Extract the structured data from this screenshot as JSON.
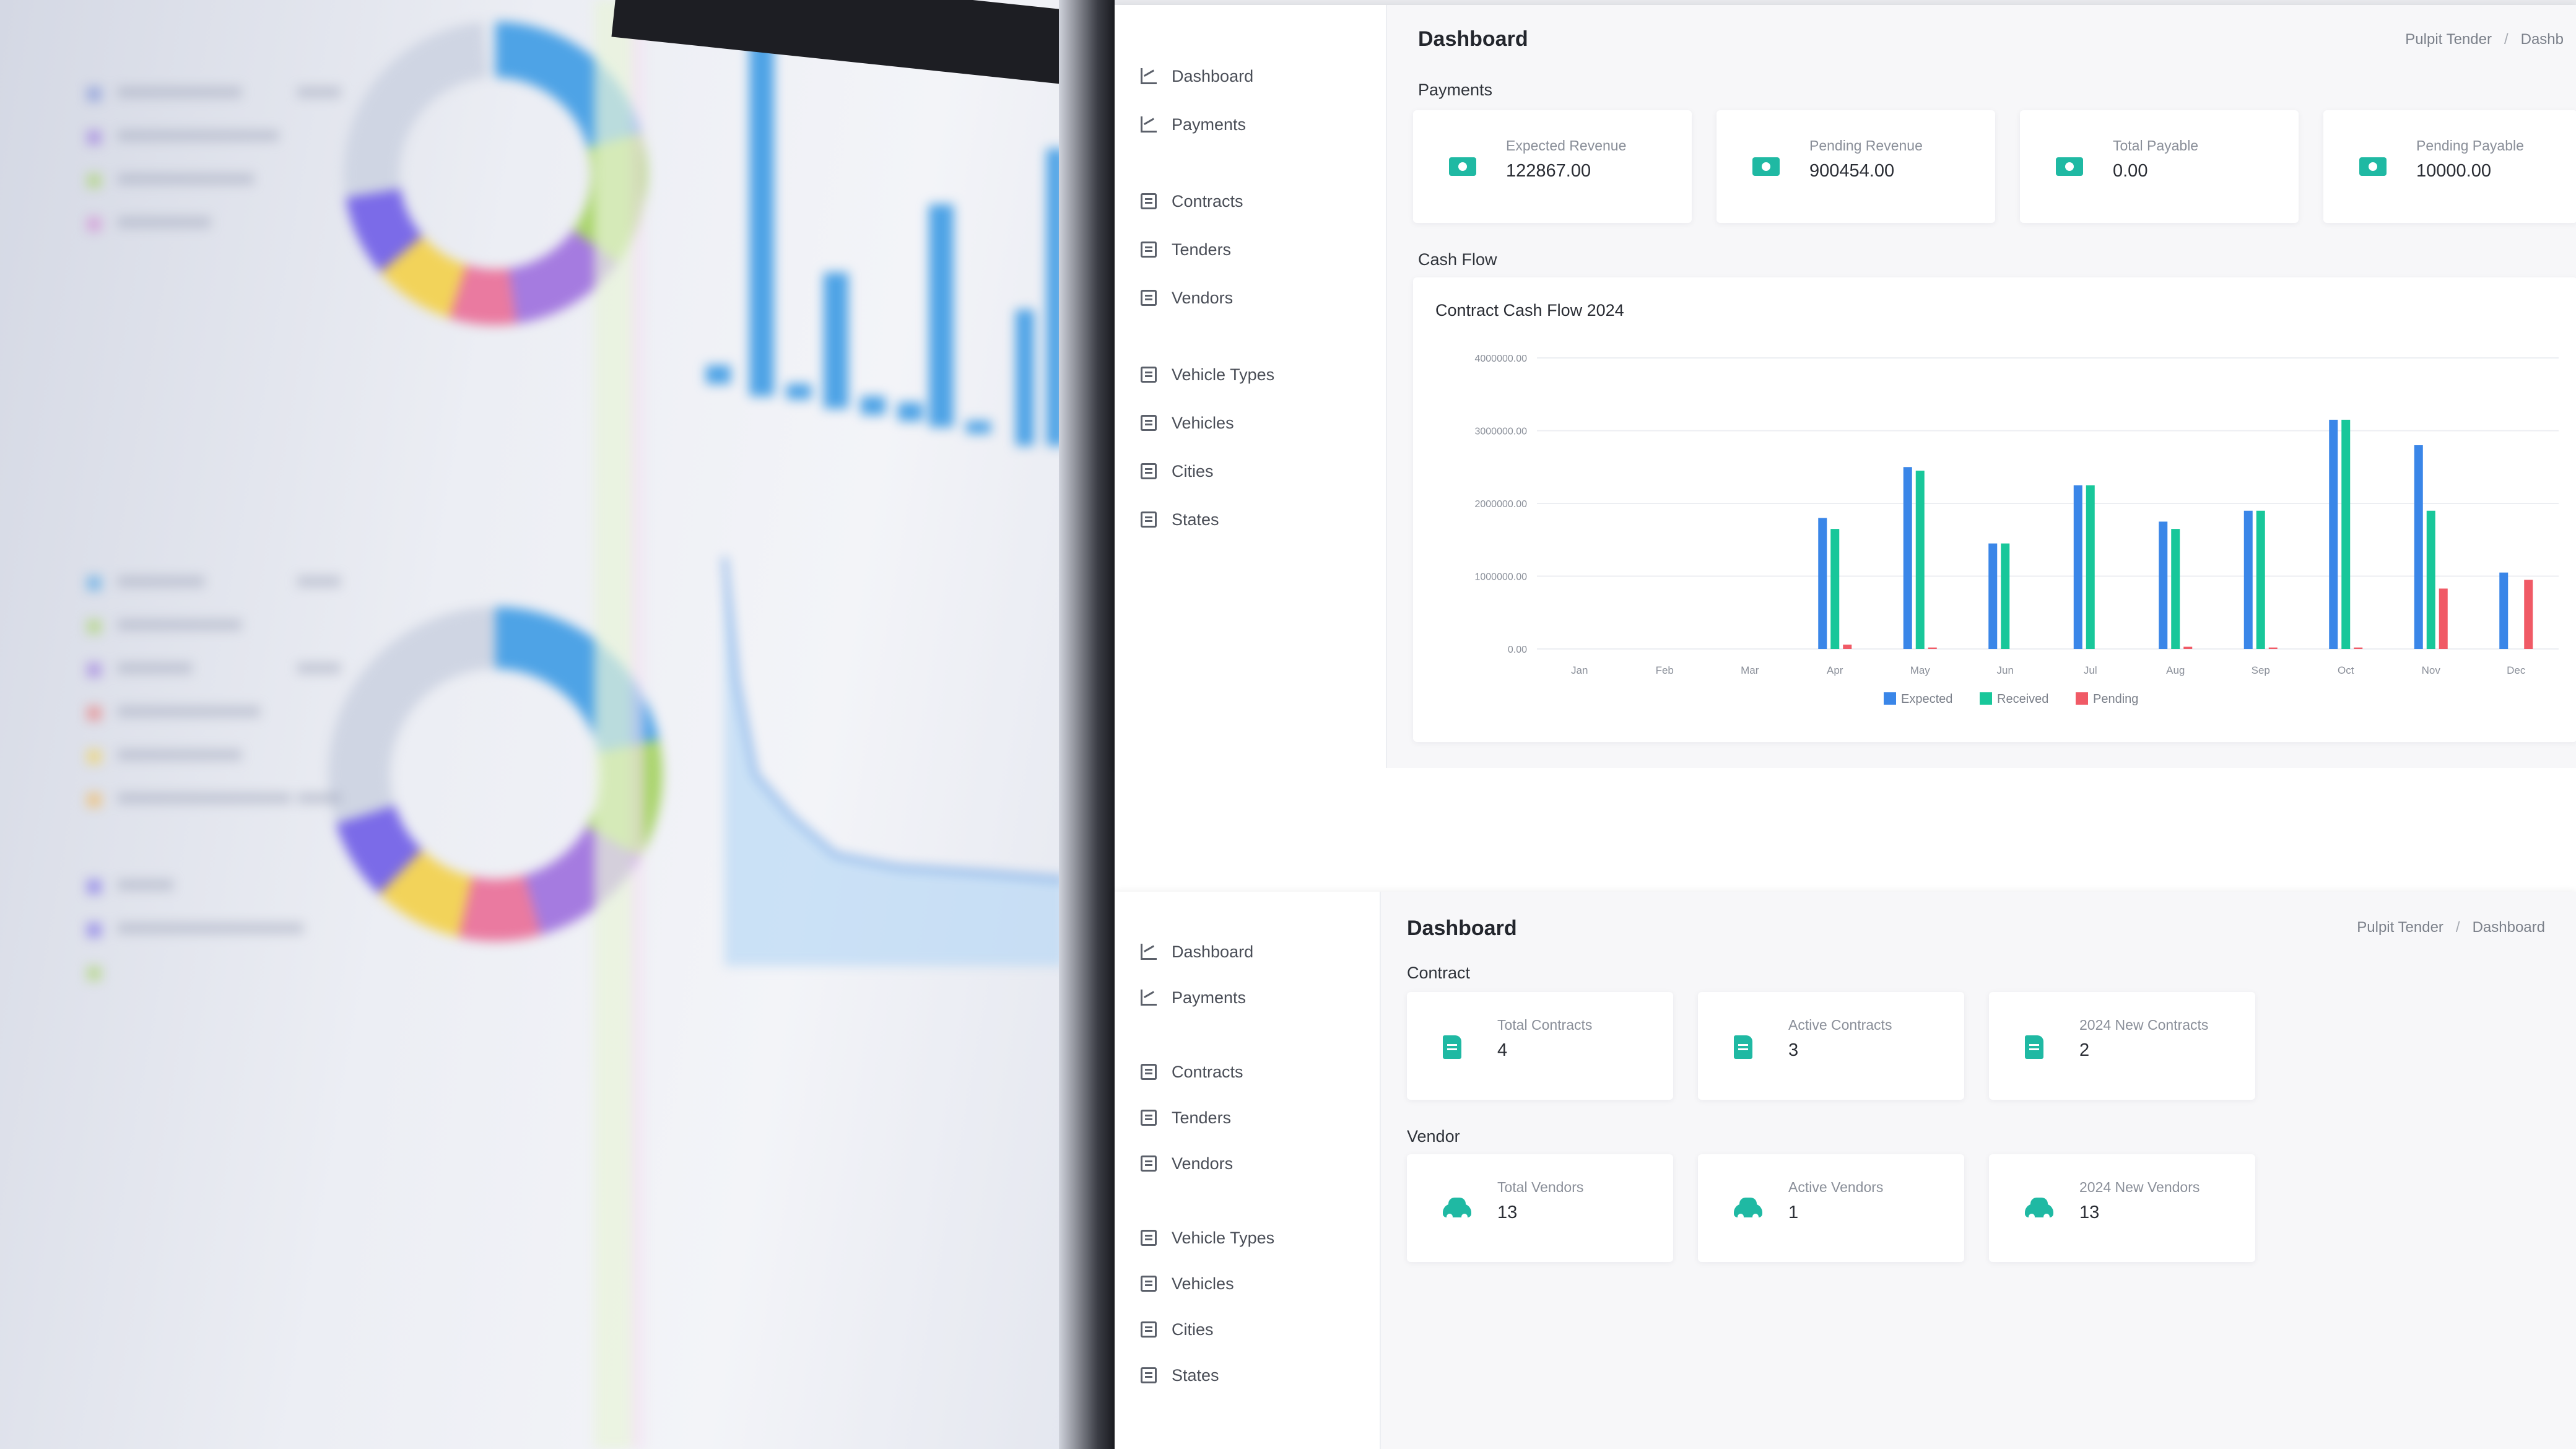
{
  "top": {
    "sidebar": {
      "sections": [
        {
          "label": "",
          "items": [
            {
              "label": "Dashboard",
              "icon": "chart-icon"
            },
            {
              "label": "Payments",
              "icon": "chart-icon"
            }
          ]
        },
        {
          "label": "",
          "items": [
            {
              "label": "Contracts",
              "icon": "list-icon"
            },
            {
              "label": "Tenders",
              "icon": "list-icon"
            },
            {
              "label": "Vendors",
              "icon": "list-icon"
            }
          ]
        },
        {
          "label": "",
          "items": [
            {
              "label": "Vehicle Types",
              "icon": "list-icon"
            },
            {
              "label": "Vehicles",
              "icon": "list-icon"
            },
            {
              "label": "Cities",
              "icon": "list-icon"
            },
            {
              "label": "States",
              "icon": "list-icon"
            }
          ]
        }
      ]
    },
    "title": "Dashboard",
    "breadcrumb": [
      "Pulpit Tender",
      "Dashb"
    ],
    "payments_label": "Payments",
    "payment_cards": [
      {
        "label": "Expected Revenue",
        "value": "122867.00",
        "icon": "money-icon"
      },
      {
        "label": "Pending Revenue",
        "value": "900454.00",
        "icon": "money-icon"
      },
      {
        "label": "Total Payable",
        "value": "0.00",
        "icon": "money-icon"
      },
      {
        "label": "Pending Payable",
        "value": "10000.00",
        "icon": "money-icon"
      }
    ],
    "cashflow_label": "Cash Flow",
    "chart_title": "Contract Cash Flow 2024"
  },
  "chart_data": {
    "type": "bar",
    "title": "Contract Cash Flow 2024",
    "ylabel": "",
    "categories": [
      "Jan",
      "Feb",
      "Mar",
      "Apr",
      "May",
      "Jun",
      "Jul",
      "Aug",
      "Sep",
      "Oct",
      "Nov",
      "Dec"
    ],
    "series": [
      {
        "name": "Expected",
        "color": "#3a86e8",
        "values": [
          0,
          0,
          0,
          1800000,
          2500000,
          1450000,
          2250000,
          1750000,
          1900000,
          3150000,
          2800000,
          1050000
        ]
      },
      {
        "name": "Received",
        "color": "#18c79a",
        "values": [
          0,
          0,
          0,
          1650000,
          2450000,
          1450000,
          2250000,
          1650000,
          1900000,
          3150000,
          1900000,
          0
        ]
      },
      {
        "name": "Pending",
        "color": "#f05a66",
        "values": [
          0,
          0,
          0,
          60000,
          20000,
          0,
          0,
          30000,
          20000,
          20000,
          830000,
          950000
        ]
      }
    ],
    "yticks": [
      "0.00",
      "1000000.00",
      "2000000.00",
      "3000000.00",
      "4000000.00"
    ],
    "ylim": [
      0,
      4000000
    ],
    "grid": true,
    "legend": "bottom"
  },
  "bottom": {
    "sidebar": {
      "sections": [
        {
          "label": "",
          "items": [
            {
              "label": "Dashboard",
              "icon": "chart-icon"
            },
            {
              "label": "Payments",
              "icon": "chart-icon"
            }
          ]
        },
        {
          "label": "",
          "items": [
            {
              "label": "Contracts",
              "icon": "list-icon"
            },
            {
              "label": "Tenders",
              "icon": "list-icon"
            },
            {
              "label": "Vendors",
              "icon": "list-icon"
            }
          ]
        },
        {
          "label": "",
          "items": [
            {
              "label": "Vehicle Types",
              "icon": "list-icon"
            },
            {
              "label": "Vehicles",
              "icon": "list-icon"
            },
            {
              "label": "Cities",
              "icon": "list-icon"
            },
            {
              "label": "States",
              "icon": "list-icon"
            }
          ]
        }
      ]
    },
    "title": "Dashboard",
    "breadcrumb": [
      "Pulpit Tender",
      "Dashboard"
    ],
    "contract_label": "Contract",
    "contract_cards": [
      {
        "label": "Total Contracts",
        "value": "4",
        "icon": "document-icon"
      },
      {
        "label": "Active Contracts",
        "value": "3",
        "icon": "document-icon"
      },
      {
        "label": "2024 New Contracts",
        "value": "2",
        "icon": "document-icon"
      }
    ],
    "vendor_label": "Vendor",
    "vendor_cards": [
      {
        "label": "Total Vendors",
        "value": "13",
        "icon": "car-icon"
      },
      {
        "label": "Active Vendors",
        "value": "1",
        "icon": "car-icon"
      },
      {
        "label": "2024 New Vendors",
        "value": "13",
        "icon": "car-icon"
      }
    ]
  }
}
